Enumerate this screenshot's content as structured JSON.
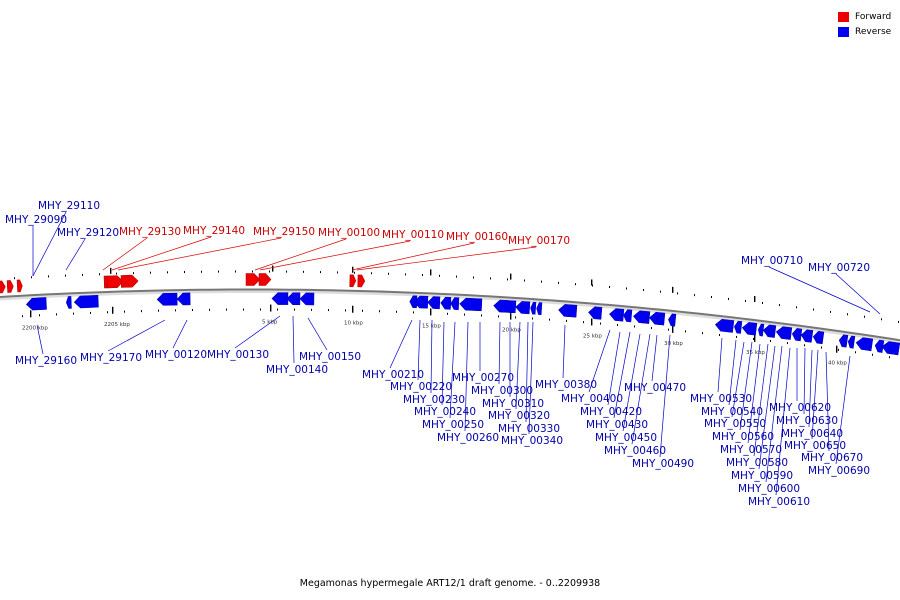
{
  "legend": {
    "forward_label": "Forward",
    "reverse_label": "Reverse",
    "forward_color": "#ee0000",
    "reverse_color": "#0000ee"
  },
  "caption": "Megamonas hypermegale ART12/1 draft genome. - 0..2209938",
  "scale_labels": [
    "2200 kbp",
    "2205 kbp",
    "5 kbp",
    "10 kbp",
    "15 kbp",
    "20 kbp",
    "25 kbp",
    "30 kbp",
    "35 kbp",
    "40 kbp"
  ],
  "forward_genes": [
    "MHY_29130",
    "MHY_29140",
    "MHY_29150",
    "MHY_00100",
    "MHY_00110",
    "MHY_00160",
    "MHY_00170"
  ],
  "reverse_genes": [
    "MHY_29110",
    "MHY_29090",
    "MHY_29120",
    "MHY_29160",
    "MHY_29170",
    "MHY_00120",
    "MHY_00130",
    "MHY_00140",
    "MHY_00150",
    "MHY_00210",
    "MHY_00220",
    "MHY_00230",
    "MHY_00240",
    "MHY_00250",
    "MHY_00260",
    "MHY_00270",
    "MHY_00300",
    "MHY_00310",
    "MHY_00320",
    "MHY_00330",
    "MHY_00340",
    "MHY_00380",
    "MHY_00400",
    "MHY_00420",
    "MHY_00430",
    "MHY_00450",
    "MHY_00460",
    "MHY_00470",
    "MHY_00490",
    "MHY_00530",
    "MHY_00540",
    "MHY_00550",
    "MHY_00560",
    "MHY_00570",
    "MHY_00580",
    "MHY_00590",
    "MHY_00600",
    "MHY_00610",
    "MHY_00620",
    "MHY_00630",
    "MHY_00640",
    "MHY_00650",
    "MHY_00670",
    "MHY_00690",
    "MHY_00710",
    "MHY_00720"
  ]
}
